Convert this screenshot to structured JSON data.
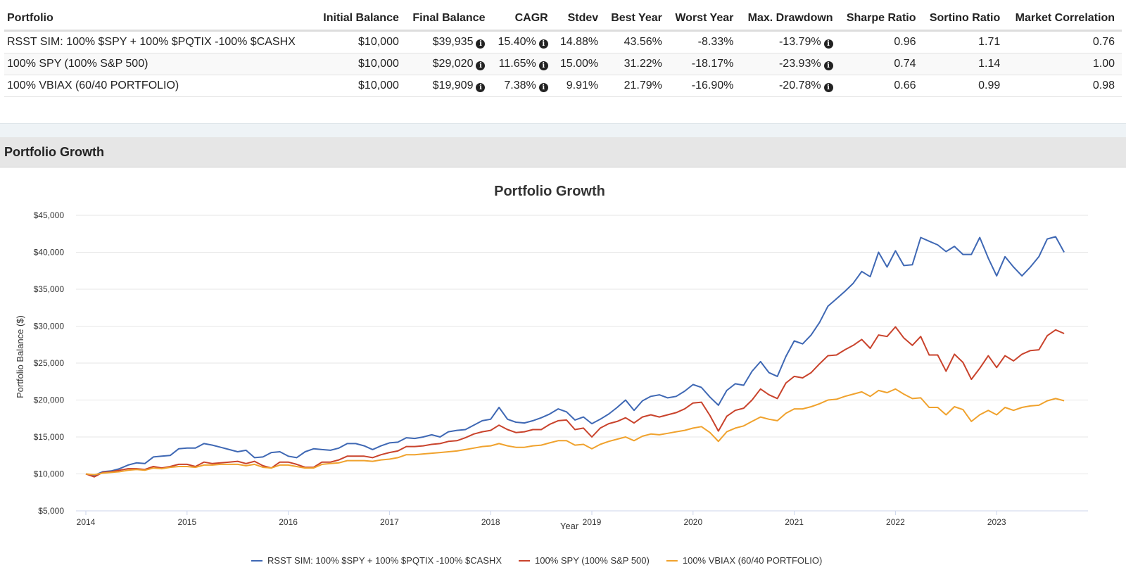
{
  "table": {
    "headers": [
      "Portfolio",
      "Initial Balance",
      "Final Balance",
      "CAGR",
      "Stdev",
      "Best Year",
      "Worst Year",
      "Max. Drawdown",
      "Sharpe Ratio",
      "Sortino Ratio",
      "Market Correlation"
    ],
    "rows": [
      {
        "portfolio": "RSST SIM: 100% $SPY + 100% $PQTIX -100% $CASHX",
        "initial": "$10,000",
        "final": "$39,935",
        "cagr": "15.40%",
        "stdev": "14.88%",
        "best": "43.56%",
        "worst": "-8.33%",
        "drawdown": "-13.79%",
        "sharpe": "0.96",
        "sortino": "1.71",
        "correlation": "0.76"
      },
      {
        "portfolio": "100% SPY (100% S&P 500)",
        "initial": "$10,000",
        "final": "$29,020",
        "cagr": "11.65%",
        "stdev": "15.00%",
        "best": "31.22%",
        "worst": "-18.17%",
        "drawdown": "-23.93%",
        "sharpe": "0.74",
        "sortino": "1.14",
        "correlation": "1.00"
      },
      {
        "portfolio": "100% VBIAX (60/40 PORTFOLIO)",
        "initial": "$10,000",
        "final": "$19,909",
        "cagr": "7.38%",
        "stdev": "9.91%",
        "best": "21.79%",
        "worst": "-16.90%",
        "drawdown": "-20.78%",
        "sharpe": "0.66",
        "sortino": "0.99",
        "correlation": "0.98"
      }
    ]
  },
  "section_title": "Portfolio Growth",
  "chart_data": {
    "type": "line",
    "title": "Portfolio Growth",
    "xlabel": "Year",
    "ylabel": "Portfolio Balance ($)",
    "xlim": [
      2014,
      2023.75
    ],
    "ylim": [
      5000,
      45000
    ],
    "y_ticks": [
      "$5,000",
      "$10,000",
      "$15,000",
      "$20,000",
      "$25,000",
      "$30,000",
      "$35,000",
      "$40,000",
      "$45,000"
    ],
    "x_ticks": [
      "2014",
      "2015",
      "2016",
      "2017",
      "2018",
      "2019",
      "2020",
      "2021",
      "2022",
      "2023"
    ],
    "grid": true,
    "legend_position": "bottom",
    "x": [
      2014.0,
      2014.083,
      2014.167,
      2014.25,
      2014.333,
      2014.417,
      2014.5,
      2014.583,
      2014.667,
      2014.75,
      2014.833,
      2014.917,
      2015.0,
      2015.083,
      2015.167,
      2015.25,
      2015.333,
      2015.417,
      2015.5,
      2015.583,
      2015.667,
      2015.75,
      2015.833,
      2015.917,
      2016.0,
      2016.083,
      2016.167,
      2016.25,
      2016.333,
      2016.417,
      2016.5,
      2016.583,
      2016.667,
      2016.75,
      2016.833,
      2016.917,
      2017.0,
      2017.083,
      2017.167,
      2017.25,
      2017.333,
      2017.417,
      2017.5,
      2017.583,
      2017.667,
      2017.75,
      2017.833,
      2017.917,
      2018.0,
      2018.083,
      2018.167,
      2018.25,
      2018.333,
      2018.417,
      2018.5,
      2018.583,
      2018.667,
      2018.75,
      2018.833,
      2018.917,
      2019.0,
      2019.083,
      2019.167,
      2019.25,
      2019.333,
      2019.417,
      2019.5,
      2019.583,
      2019.667,
      2019.75,
      2019.833,
      2019.917,
      2020.0,
      2020.083,
      2020.167,
      2020.25,
      2020.333,
      2020.417,
      2020.5,
      2020.583,
      2020.667,
      2020.75,
      2020.833,
      2020.917,
      2021.0,
      2021.083,
      2021.167,
      2021.25,
      2021.333,
      2021.417,
      2021.5,
      2021.583,
      2021.667,
      2021.75,
      2021.833,
      2021.917,
      2022.0,
      2022.083,
      2022.167,
      2022.25,
      2022.333,
      2022.417,
      2022.5,
      2022.583,
      2022.667,
      2022.75,
      2022.833,
      2022.917,
      2023.0,
      2023.083,
      2023.167,
      2023.25,
      2023.333,
      2023.417,
      2023.5,
      2023.583,
      2023.667
    ],
    "series": [
      {
        "name": "RSST SIM: 100% $SPY + 100% $PQTIX -100% $CASHX",
        "color": "#3f68b4",
        "values": [
          10000,
          9800,
          10300,
          10400,
          10700,
          11200,
          11500,
          11400,
          12300,
          12400,
          12500,
          13400,
          13500,
          13500,
          14100,
          13900,
          13600,
          13300,
          13000,
          13200,
          12200,
          12300,
          12900,
          13000,
          12400,
          12200,
          13000,
          13400,
          13300,
          13200,
          13500,
          14100,
          14100,
          13800,
          13300,
          13800,
          14200,
          14300,
          14900,
          14800,
          15000,
          15300,
          15000,
          15700,
          15900,
          16000,
          16600,
          17200,
          17400,
          19000,
          17400,
          17000,
          16900,
          17200,
          17600,
          18100,
          18800,
          18400,
          17300,
          17700,
          16800,
          17400,
          18100,
          19000,
          20000,
          18600,
          19900,
          20500,
          20700,
          20300,
          20500,
          21200,
          22100,
          21700,
          20400,
          19300,
          21300,
          22200,
          22000,
          23900,
          25200,
          23700,
          23200,
          25900,
          28000,
          27600,
          28800,
          30500,
          32700,
          33700,
          34700,
          35800,
          37400,
          36700,
          40000,
          38000,
          40200,
          38200,
          38300,
          42000,
          41500,
          41000,
          40100,
          40800,
          39700,
          39700,
          42000,
          39200,
          36800,
          39400,
          38000,
          36800,
          38000,
          39400,
          41800,
          42100,
          40000
        ]
      },
      {
        "name": "100% SPY (100% S&P 500)",
        "color": "#c9432c",
        "values": [
          10000,
          9600,
          10200,
          10300,
          10500,
          10700,
          10700,
          10600,
          11000,
          10800,
          11000,
          11300,
          11300,
          11000,
          11600,
          11400,
          11500,
          11600,
          11700,
          11400,
          11700,
          11100,
          10800,
          11600,
          11600,
          11300,
          10900,
          10900,
          11600,
          11600,
          11900,
          12400,
          12400,
          12400,
          12200,
          12600,
          12900,
          13100,
          13700,
          13700,
          13800,
          14000,
          14100,
          14400,
          14500,
          14900,
          15400,
          15700,
          15900,
          16600,
          16000,
          15600,
          15700,
          16000,
          16000,
          16700,
          17200,
          17300,
          16000,
          16200,
          15000,
          16200,
          16800,
          17100,
          17600,
          16900,
          17700,
          18000,
          17700,
          18000,
          18300,
          18800,
          19600,
          19700,
          17900,
          15800,
          17800,
          18600,
          18900,
          20000,
          21500,
          20700,
          20200,
          22300,
          23200,
          23000,
          23700,
          24900,
          26000,
          26100,
          26800,
          27400,
          28200,
          27000,
          28800,
          28600,
          29900,
          28400,
          27400,
          28600,
          26100,
          26100,
          23900,
          26200,
          25100,
          22800,
          24300,
          26000,
          24400,
          26000,
          25300,
          26200,
          26700,
          26800,
          28700,
          29500,
          29000
        ]
      },
      {
        "name": "100% VBIAX (60/40 PORTFOLIO)",
        "color": "#f0a22d",
        "values": [
          10000,
          9900,
          10100,
          10200,
          10300,
          10500,
          10600,
          10500,
          10800,
          10700,
          10900,
          11000,
          11000,
          10900,
          11200,
          11200,
          11300,
          11300,
          11300,
          11100,
          11300,
          10900,
          10800,
          11200,
          11200,
          11000,
          10800,
          10800,
          11300,
          11400,
          11500,
          11800,
          11800,
          11800,
          11700,
          11900,
          12000,
          12200,
          12600,
          12600,
          12700,
          12800,
          12900,
          13000,
          13100,
          13300,
          13500,
          13700,
          13800,
          14100,
          13800,
          13600,
          13600,
          13800,
          13900,
          14200,
          14500,
          14500,
          13900,
          14000,
          13400,
          14000,
          14400,
          14700,
          15000,
          14500,
          15100,
          15400,
          15300,
          15500,
          15700,
          15900,
          16200,
          16400,
          15600,
          14400,
          15700,
          16200,
          16500,
          17100,
          17700,
          17400,
          17200,
          18200,
          18800,
          18800,
          19100,
          19500,
          20000,
          20100,
          20500,
          20800,
          21100,
          20500,
          21300,
          21000,
          21500,
          20800,
          20200,
          20300,
          19000,
          19000,
          18000,
          19100,
          18700,
          17100,
          18000,
          18600,
          18000,
          19000,
          18600,
          19000,
          19200,
          19300,
          19900,
          20200,
          19909
        ]
      }
    ]
  }
}
